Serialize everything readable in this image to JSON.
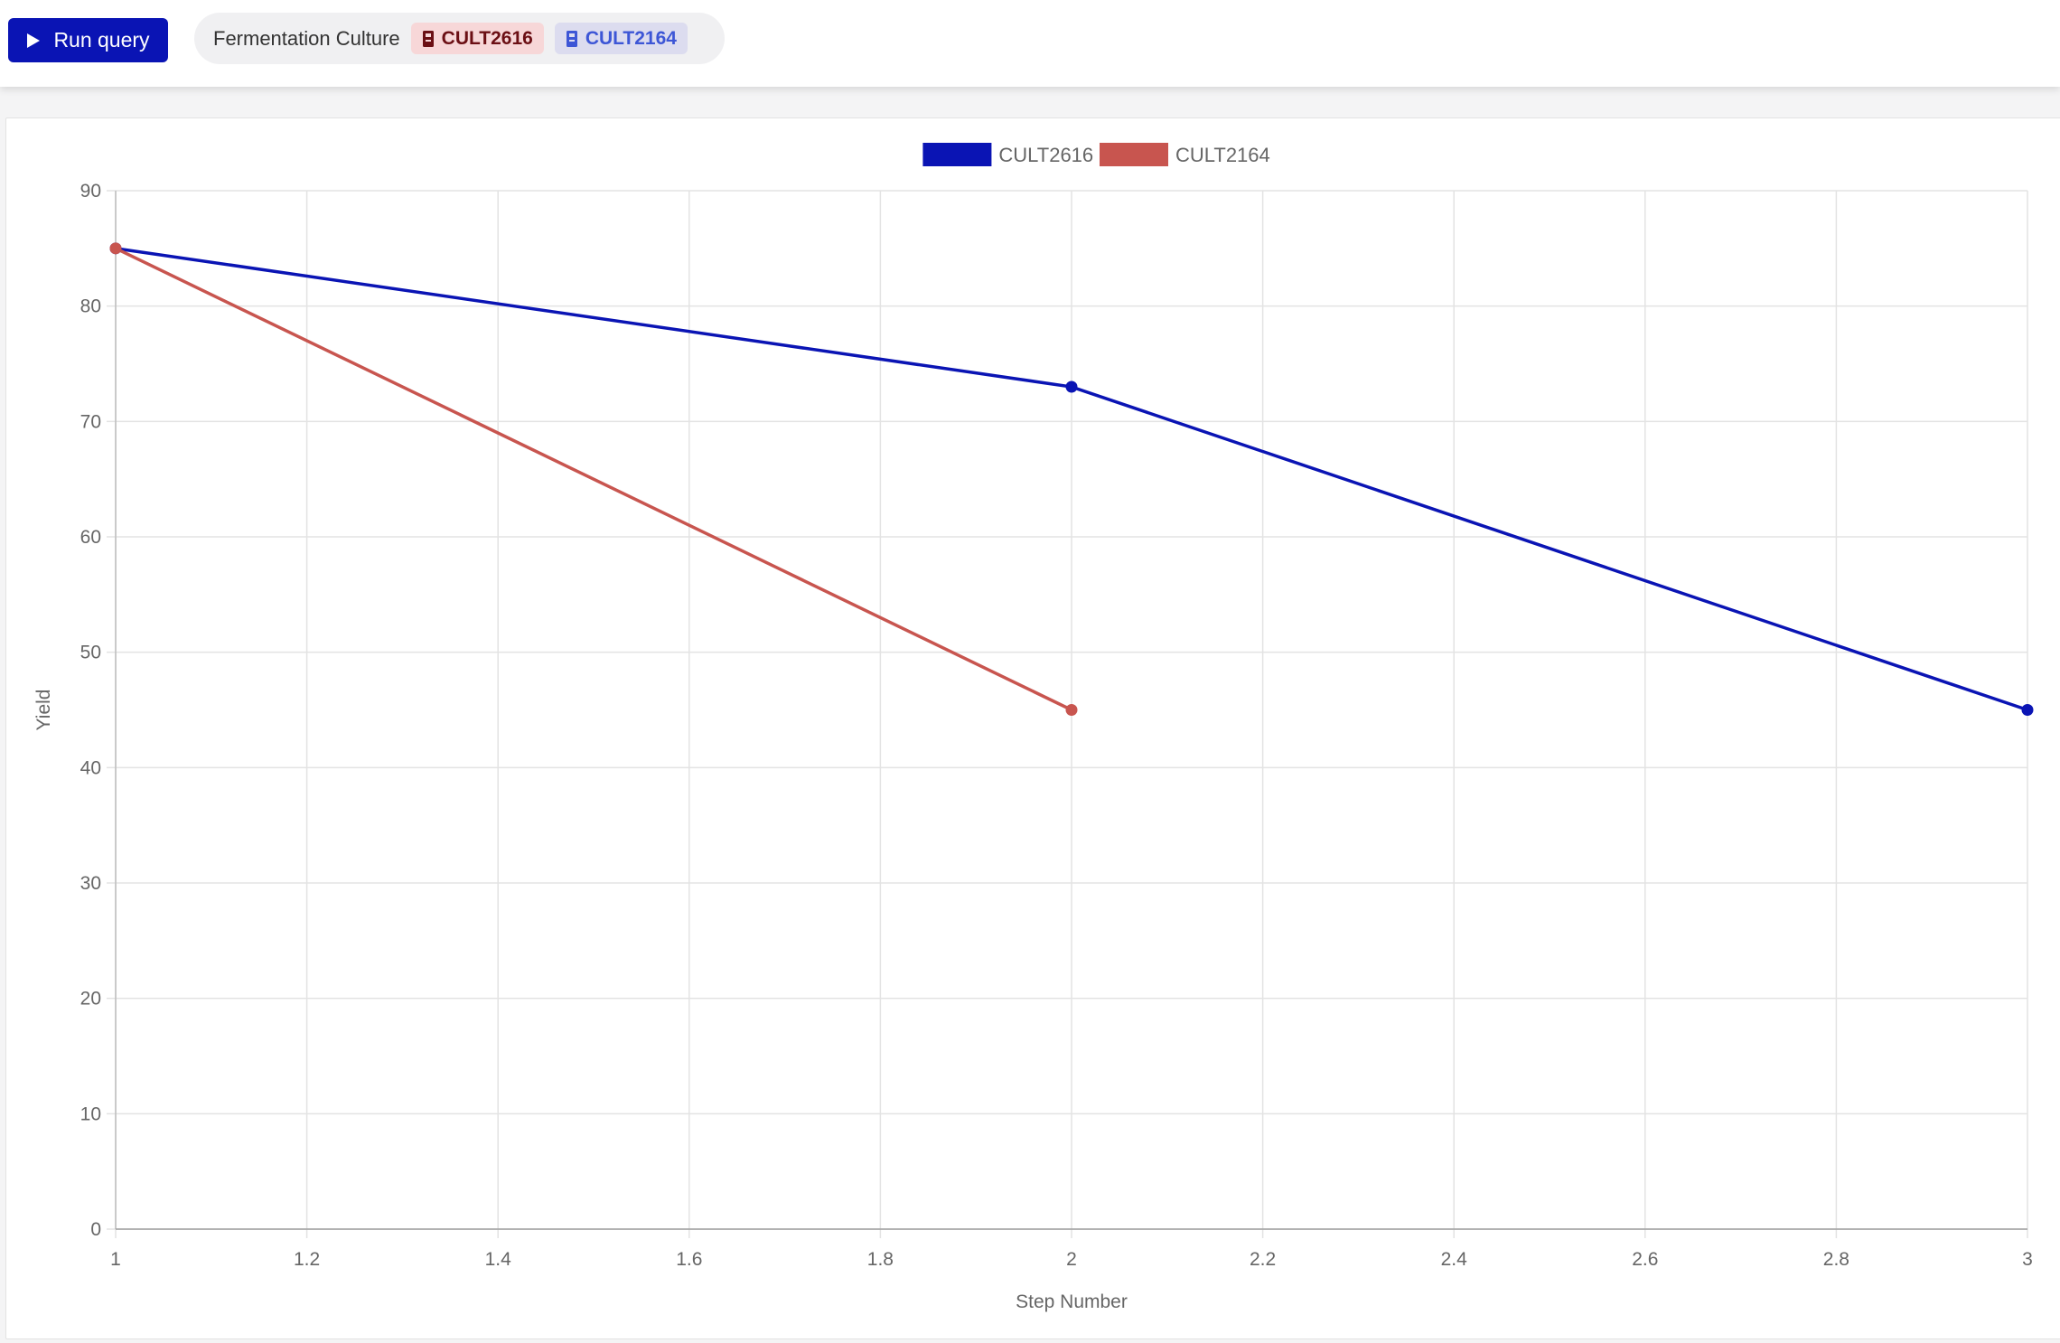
{
  "toolbar": {
    "run_label": "Run query",
    "query": {
      "label": "Fermentation Culture",
      "tags": [
        {
          "label": "CULT2616",
          "color": "#6b0f14"
        },
        {
          "label": "CULT2164",
          "color": "#3d56d6"
        }
      ]
    }
  },
  "chart_data": {
    "type": "line",
    "xlabel": "Step Number",
    "ylabel": "Yield",
    "xlim": [
      1,
      3
    ],
    "ylim": [
      0,
      90
    ],
    "x_ticks": [
      "1",
      "1.2",
      "1.4",
      "1.6",
      "1.8",
      "2",
      "2.2",
      "2.4",
      "2.6",
      "2.8",
      "3"
    ],
    "y_ticks": [
      "0",
      "10",
      "20",
      "30",
      "40",
      "50",
      "60",
      "70",
      "80",
      "90"
    ],
    "grid": true,
    "legend_position": "top-center",
    "series": [
      {
        "name": "CULT2616",
        "color": "#0a14b4",
        "x": [
          1,
          2,
          3
        ],
        "y": [
          85,
          73,
          45
        ]
      },
      {
        "name": "CULT2164",
        "color": "#c8554f",
        "x": [
          1,
          2
        ],
        "y": [
          85,
          45
        ]
      }
    ]
  }
}
